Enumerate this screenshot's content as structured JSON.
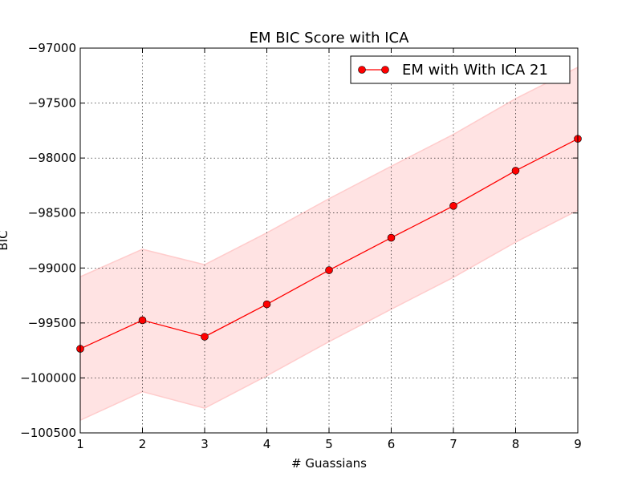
{
  "chart_data": {
    "type": "line",
    "title": "EM BIC Score with ICA",
    "xlabel": "# Guassians",
    "ylabel": "BIC",
    "x": [
      1,
      2,
      3,
      4,
      5,
      6,
      7,
      8,
      9
    ],
    "xlim": [
      1,
      9
    ],
    "ylim": [
      -100500,
      -97000
    ],
    "xticks": [
      "1",
      "2",
      "3",
      "4",
      "5",
      "6",
      "7",
      "8",
      "9"
    ],
    "yticks": [
      "−97000",
      "−97500",
      "−98000",
      "−98500",
      "−99000",
      "−99500",
      "−100000",
      "−100500"
    ],
    "ytick_values": [
      -97000,
      -97500,
      -98000,
      -98500,
      -99000,
      -99500,
      -100000,
      -100500
    ],
    "grid": true,
    "legend_position": "top-right",
    "series": [
      {
        "name": "EM with With ICA 21",
        "color": "#ff0000",
        "marker": "circle",
        "values": [
          -99735,
          -99475,
          -99625,
          -99330,
          -99020,
          -98725,
          -98435,
          -98115,
          -97825
        ],
        "band_upper": [
          -99080,
          -98830,
          -98970,
          -98680,
          -98370,
          -98075,
          -97785,
          -97460,
          -97175
        ],
        "band_lower": [
          -100385,
          -100125,
          -100275,
          -99980,
          -99670,
          -99375,
          -99085,
          -98765,
          -98475
        ],
        "band_color": "#ffcccc"
      }
    ]
  }
}
